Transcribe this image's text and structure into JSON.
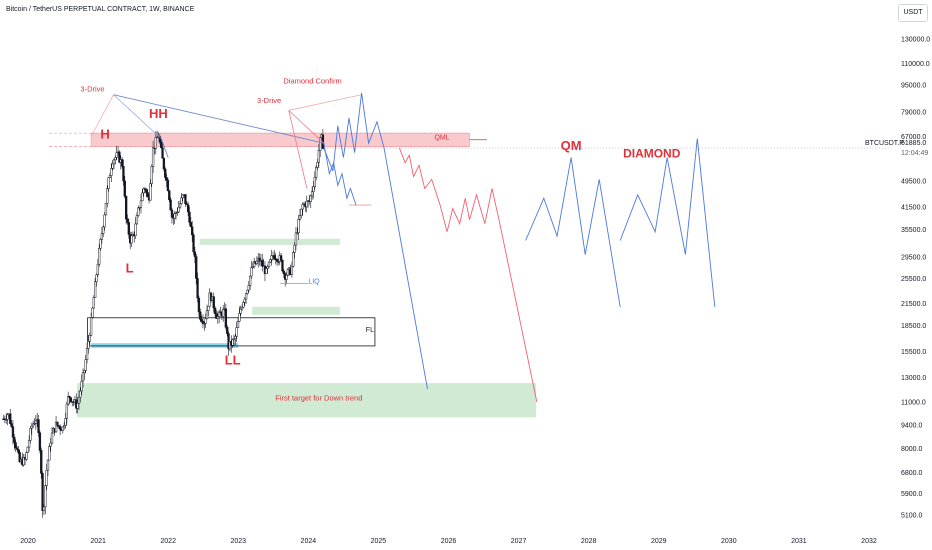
{
  "header": {
    "title": "Bitcoin / TetherUS PERPETUAL CONTRACT, 1W, BINANCE",
    "currency_button": "USDT"
  },
  "price_marker": {
    "symbol": "BTCUSDT.P",
    "price": "61885.0",
    "countdown": "12:04:49",
    "value": 61885
  },
  "colors": {
    "candle": "#131722",
    "red_annotation": "#e0303a",
    "blue_projection": "#4a78e0",
    "red_projection": "#f0606c",
    "supply_zone": "#f8c8cc",
    "demand_zone": "#cfe9d2",
    "liquidity_zone": "#7fd6f0"
  },
  "chart_data": {
    "type": "line",
    "title": "Bitcoin / TetherUS PERPETUAL CONTRACT, 1W, BINANCE",
    "y_scale": "log",
    "ylim": [
      4600,
      150000
    ],
    "xlim": [
      2019.6,
      2032.3
    ],
    "y_ticks": [
      "130000.0",
      "110000.0",
      "95000.0",
      "79000.0",
      "67000.0",
      "49500.0",
      "41500.0",
      "35500.0",
      "29500.0",
      "25500.0",
      "21500.0",
      "18500.0",
      "15500.0",
      "13000.0",
      "11000.0",
      "9400.0",
      "8000.0",
      "6800.0",
      "5900.0",
      "5100.0"
    ],
    "x_ticks": [
      "2020",
      "2021",
      "2022",
      "2023",
      "2024",
      "2025",
      "2026",
      "2027",
      "2028",
      "2029",
      "2030",
      "2031",
      "2032"
    ],
    "price_path": [
      [
        2019.65,
        9800
      ],
      [
        2019.72,
        10200
      ],
      [
        2019.8,
        8600
      ],
      [
        2019.88,
        7300
      ],
      [
        2019.96,
        7400
      ],
      [
        2020.05,
        9300
      ],
      [
        2020.12,
        9900
      ],
      [
        2020.18,
        7800
      ],
      [
        2020.21,
        5000
      ],
      [
        2020.26,
        6800
      ],
      [
        2020.33,
        8700
      ],
      [
        2020.4,
        9400
      ],
      [
        2020.5,
        9200
      ],
      [
        2020.58,
        11500
      ],
      [
        2020.7,
        10700
      ],
      [
        2020.8,
        13500
      ],
      [
        2020.9,
        19000
      ],
      [
        2021.0,
        29000
      ],
      [
        2021.08,
        38000
      ],
      [
        2021.14,
        48000
      ],
      [
        2021.2,
        57000
      ],
      [
        2021.28,
        59000
      ],
      [
        2021.35,
        55000
      ],
      [
        2021.4,
        38000
      ],
      [
        2021.46,
        33000
      ],
      [
        2021.52,
        35000
      ],
      [
        2021.58,
        41000
      ],
      [
        2021.66,
        48000
      ],
      [
        2021.72,
        43000
      ],
      [
        2021.78,
        61000
      ],
      [
        2021.86,
        68000
      ],
      [
        2021.92,
        57000
      ],
      [
        2022.0,
        47000
      ],
      [
        2022.06,
        38000
      ],
      [
        2022.14,
        41000
      ],
      [
        2022.22,
        45000
      ],
      [
        2022.3,
        39000
      ],
      [
        2022.38,
        29000
      ],
      [
        2022.44,
        20000
      ],
      [
        2022.52,
        19000
      ],
      [
        2022.6,
        23000
      ],
      [
        2022.7,
        19500
      ],
      [
        2022.8,
        20500
      ],
      [
        2022.86,
        16000
      ],
      [
        2022.95,
        16800
      ],
      [
        2023.04,
        21000
      ],
      [
        2023.12,
        23500
      ],
      [
        2023.2,
        27500
      ],
      [
        2023.3,
        29000
      ],
      [
        2023.4,
        26500
      ],
      [
        2023.5,
        30000
      ],
      [
        2023.6,
        29000
      ],
      [
        2023.66,
        26000
      ],
      [
        2023.76,
        27000
      ],
      [
        2023.82,
        34000
      ],
      [
        2023.92,
        42000
      ],
      [
        2024.02,
        43000
      ],
      [
        2024.1,
        52000
      ],
      [
        2024.18,
        67000
      ],
      [
        2024.22,
        61885
      ]
    ],
    "projections": [
      {
        "color": "blue",
        "points": [
          [
            2024.22,
            61885
          ],
          [
            2024.35,
            53000
          ],
          [
            2024.42,
            72000
          ],
          [
            2024.5,
            58000
          ],
          [
            2024.58,
            76000
          ],
          [
            2024.66,
            60000
          ],
          [
            2024.76,
            90000
          ],
          [
            2024.86,
            64000
          ],
          [
            2024.98,
            74000
          ],
          [
            2025.08,
            62000
          ],
          [
            2025.7,
            12000
          ]
        ]
      },
      {
        "color": "blue",
        "points": [
          [
            2024.22,
            64000
          ],
          [
            2024.3,
            52000
          ],
          [
            2024.36,
            56000
          ],
          [
            2024.42,
            48000
          ],
          [
            2024.48,
            52000
          ],
          [
            2024.55,
            44000
          ],
          [
            2024.6,
            47000
          ],
          [
            2024.68,
            42000
          ]
        ]
      },
      {
        "color": "red",
        "points": [
          [
            2025.3,
            62000
          ],
          [
            2025.38,
            56000
          ],
          [
            2025.44,
            59000
          ],
          [
            2025.5,
            51000
          ],
          [
            2025.58,
            55000
          ],
          [
            2025.66,
            47000
          ],
          [
            2025.76,
            50000
          ],
          [
            2025.88,
            42000
          ],
          [
            2025.98,
            35000
          ],
          [
            2026.06,
            41000
          ],
          [
            2026.16,
            37000
          ],
          [
            2026.24,
            44000
          ],
          [
            2026.3,
            38000
          ],
          [
            2026.4,
            45000
          ],
          [
            2026.52,
            37000
          ],
          [
            2026.62,
            47000
          ],
          [
            2026.72,
            38000
          ],
          [
            2027.26,
            11000
          ]
        ]
      },
      {
        "color": "blue",
        "points": [
          [
            2027.1,
            33000
          ],
          [
            2027.36,
            44000
          ],
          [
            2027.55,
            34000
          ],
          [
            2027.75,
            58000
          ],
          [
            2027.95,
            30000
          ],
          [
            2028.15,
            50000
          ],
          [
            2028.45,
            21000
          ]
        ]
      },
      {
        "color": "blue",
        "points": [
          [
            2028.45,
            33000
          ],
          [
            2028.7,
            45000
          ],
          [
            2028.95,
            35000
          ],
          [
            2029.12,
            58000
          ],
          [
            2029.38,
            30000
          ],
          [
            2029.55,
            66000
          ],
          [
            2029.8,
            21000
          ]
        ]
      }
    ],
    "zones": [
      {
        "label": "QML",
        "x": [
          2020.9,
          2026.3
        ],
        "y": [
          62500,
          68500
        ],
        "kind": "supply"
      },
      {
        "label": "",
        "x": [
          2020.9,
          2023.0
        ],
        "y": [
          15900,
          16400
        ],
        "kind": "liquidity"
      },
      {
        "label": "FL",
        "x": [
          2020.85,
          2024.95
        ],
        "y": [
          16100,
          19500
        ],
        "kind": "box"
      },
      {
        "label": "First target for Down trend",
        "x": [
          2020.7,
          2027.25
        ],
        "y": [
          9900,
          12500
        ],
        "kind": "demand"
      },
      {
        "label": "",
        "x": [
          2022.45,
          2024.45
        ],
        "y": [
          32000,
          33400
        ],
        "kind": "demand"
      },
      {
        "label": "",
        "x": [
          2023.2,
          2024.45
        ],
        "y": [
          19900,
          21000
        ],
        "kind": "demand"
      }
    ],
    "annotations": [
      {
        "text": "3-Drive",
        "x": 2020.92,
        "y": 91000,
        "size": "small"
      },
      {
        "text": "HH",
        "x": 2021.86,
        "y": 76000,
        "size": "big"
      },
      {
        "text": "H",
        "x": 2021.1,
        "y": 66000,
        "size": "big"
      },
      {
        "text": "L",
        "x": 2021.45,
        "y": 26500,
        "size": "big"
      },
      {
        "text": "LL",
        "x": 2022.92,
        "y": 14200,
        "size": "big"
      },
      {
        "text": "3-Drive",
        "x": 2023.44,
        "y": 84000,
        "size": "small"
      },
      {
        "text": "Diamond Confirm",
        "x": 2024.06,
        "y": 96000,
        "size": "small"
      },
      {
        "text": "QM",
        "x": 2027.75,
        "y": 61000,
        "size": "big"
      },
      {
        "text": "DIAMOND",
        "x": 2028.9,
        "y": 58000,
        "size": "big"
      },
      {
        "text": "LIQ",
        "x": 2024.0,
        "y": 24600,
        "size": "blue"
      },
      {
        "text": "QML",
        "x": 2025.8,
        "y": 65500,
        "size": "qml"
      },
      {
        "text": "FL",
        "x": 2024.82,
        "y": 17700,
        "size": "plain"
      },
      {
        "text": "First target for Down trend",
        "x": 2024.15,
        "y": 11100,
        "size": "small"
      }
    ]
  }
}
